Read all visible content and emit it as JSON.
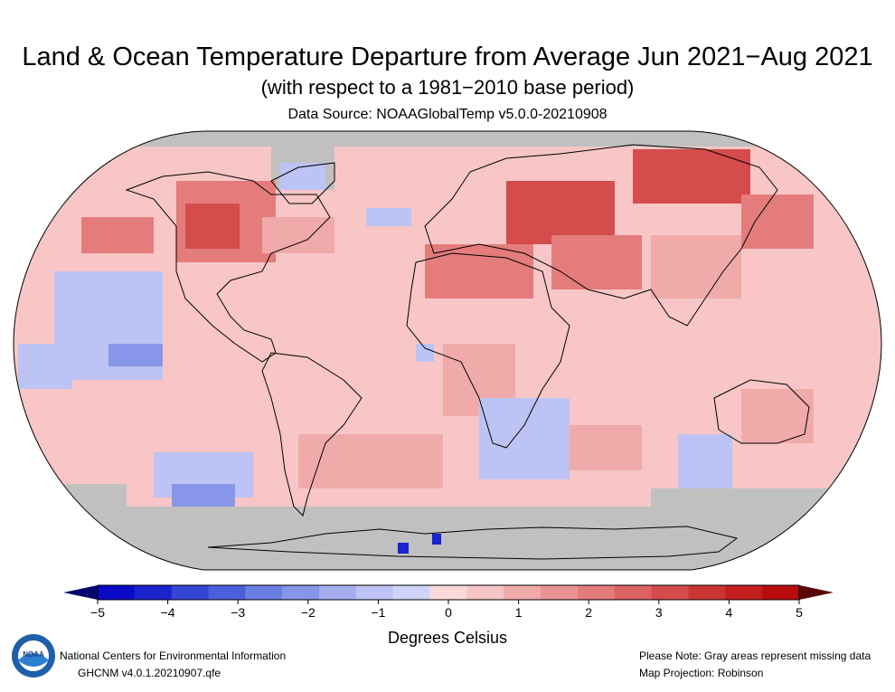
{
  "header": {
    "title": "Land & Ocean Temperature Departure from Average Jun 2021−Aug 2021",
    "subtitle": "(with respect to a 1981−2010 base period)",
    "source": "Data Source: NOAAGlobalTemp v5.0.0-20210908"
  },
  "colorbar": {
    "ticks": [
      "−5",
      "−4",
      "−3",
      "−2",
      "−1",
      "0",
      "1",
      "2",
      "3",
      "4",
      "5"
    ],
    "units": "Degrees Celsius",
    "colors": [
      "#0a0ac6",
      "#1c23cf",
      "#3346d6",
      "#4e5fdc",
      "#6b7fe3",
      "#8896e9",
      "#a4adef",
      "#bdc3f4",
      "#d0d4f8",
      "#fbdada",
      "#f6c5c5",
      "#f0aaaa",
      "#ea9393",
      "#e47c7c",
      "#dc6363",
      "#d44c4c",
      "#cc3535",
      "#c21e1e",
      "#b80c0c"
    ],
    "low_arrow_color": "#050570",
    "high_arrow_color": "#5a0505"
  },
  "map": {
    "ocean_base_color": "#f8c6c6",
    "missing_color": "#c0c0c0",
    "coast_color": "#000000"
  },
  "footer": {
    "org": "National Centers for Environmental Information",
    "dataset": "GHCNM v4.0.1.20210907.qfe",
    "note": "Please Note: Gray areas represent missing data",
    "projection": "Map Projection: Robinson"
  },
  "logo": {
    "text": "NOAA"
  }
}
